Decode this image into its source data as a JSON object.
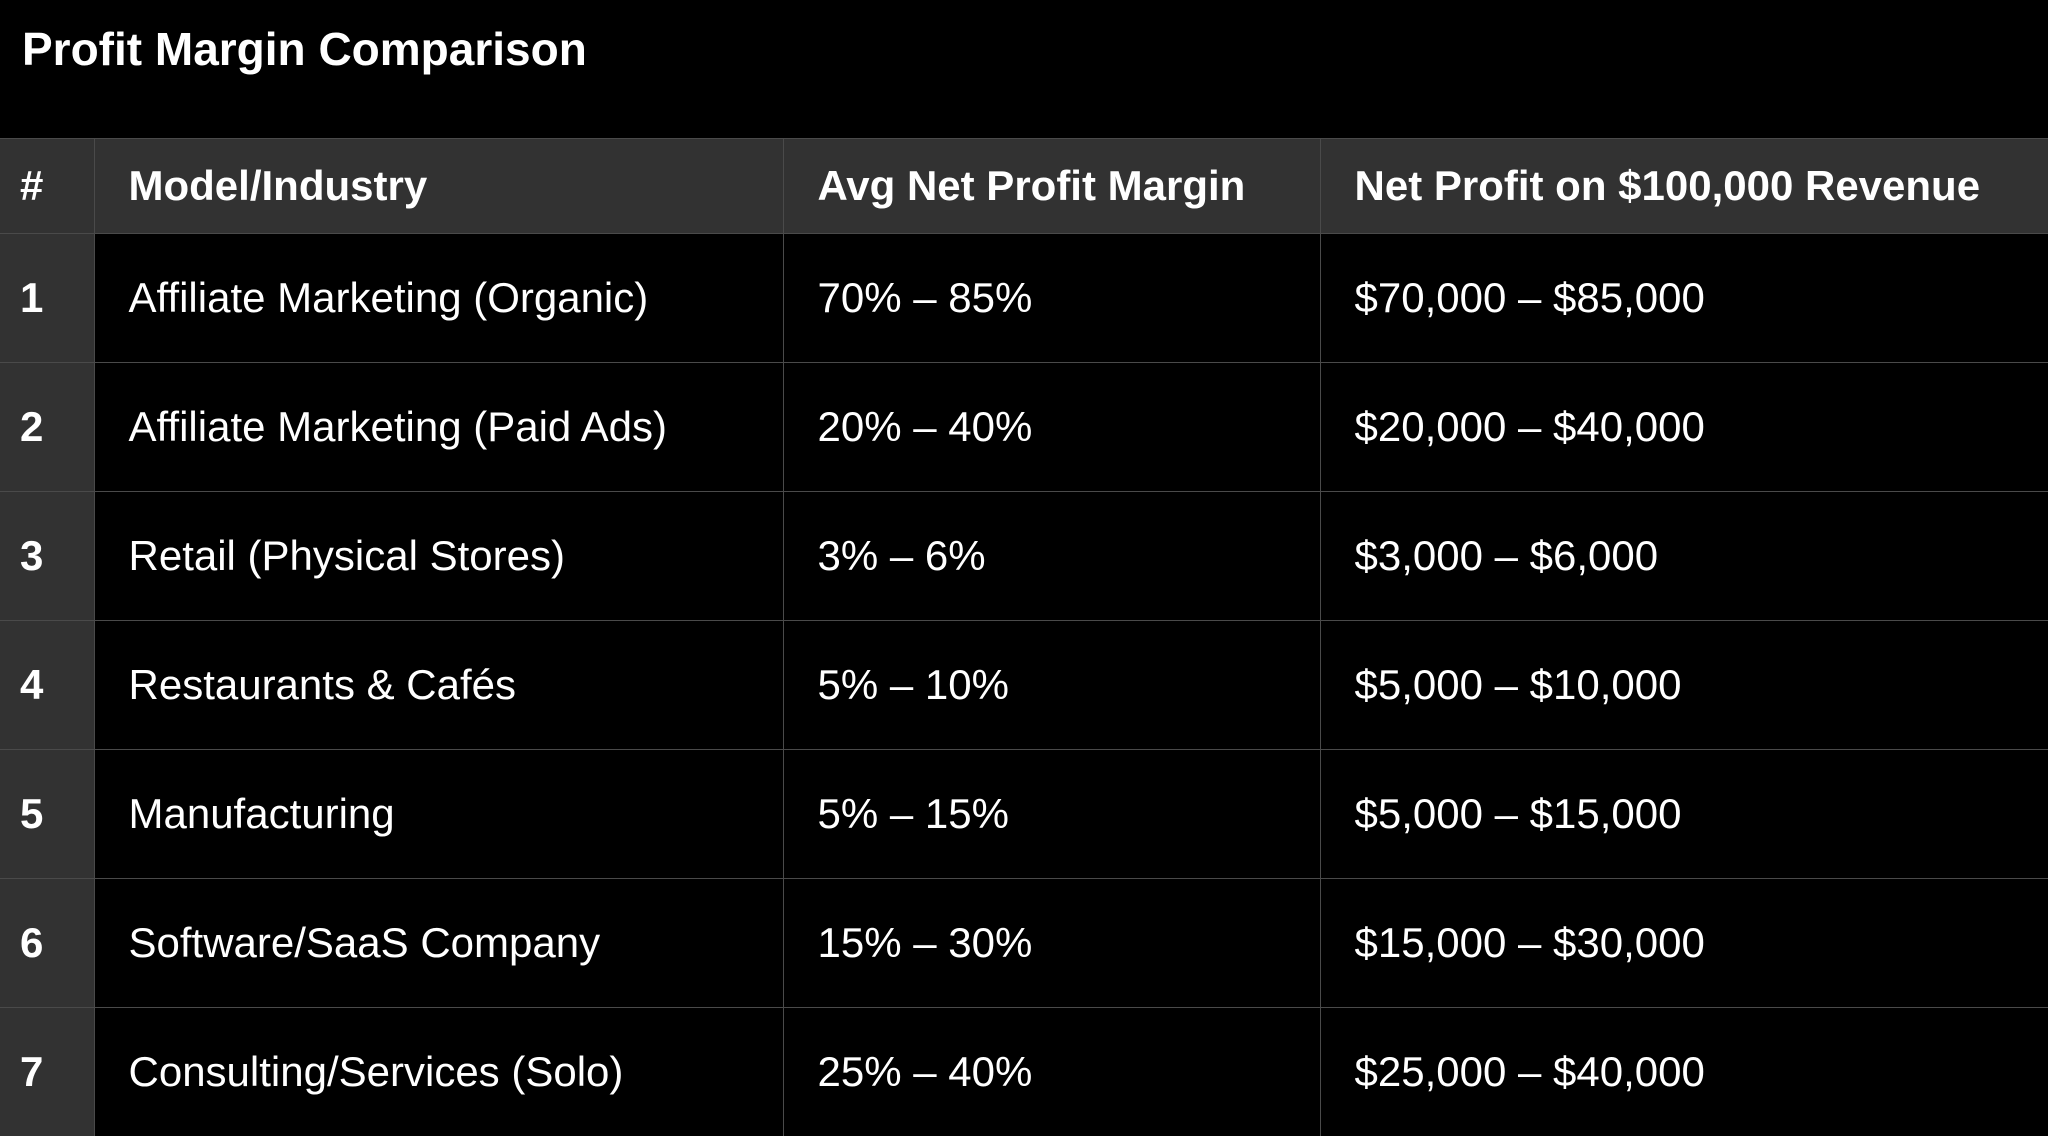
{
  "title": "Profit Margin Comparison",
  "table": {
    "headers": [
      "#",
      "Model/Industry",
      "Avg Net Profit Margin",
      "Net Profit on $100,000 Revenue"
    ],
    "rows": [
      [
        "1",
        "Affiliate Marketing (Organic)",
        "70% – 85%",
        "$70,000 – $85,000"
      ],
      [
        "2",
        "Affiliate Marketing (Paid Ads)",
        "20% – 40%",
        "$20,000 – $40,000"
      ],
      [
        "3",
        "Retail (Physical Stores)",
        "3% – 6%",
        "$3,000 – $6,000"
      ],
      [
        "4",
        "Restaurants & Cafés",
        "5% – 10%",
        "$5,000 – $10,000"
      ],
      [
        "5",
        "Manufacturing",
        "5% – 15%",
        "$5,000 – $15,000"
      ],
      [
        "6",
        "Software/SaaS Company",
        "15% – 30%",
        "$15,000 – $30,000"
      ],
      [
        "7",
        "Consulting/Services (Solo)",
        "25% – 40%",
        "$25,000 – $40,000"
      ]
    ]
  },
  "colors": {
    "background": "#000000",
    "header_fill": "#323232",
    "grid_line": "#4a4a4a",
    "text": "#ffffff"
  }
}
